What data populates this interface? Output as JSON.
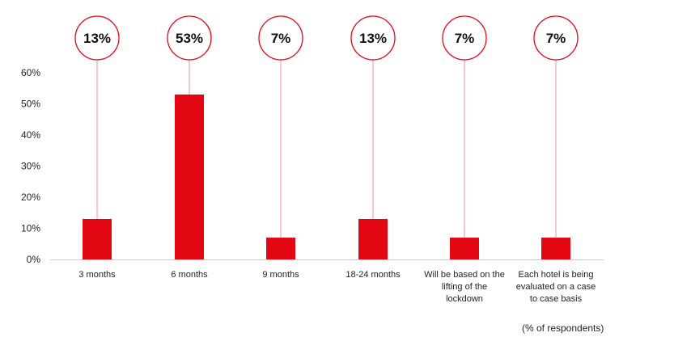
{
  "chart_data": {
    "type": "bar",
    "categories": [
      [
        "3 months"
      ],
      [
        "6 months"
      ],
      [
        "9 months"
      ],
      [
        "18-24 months"
      ],
      [
        "Will be based on the",
        "lifting of the",
        "lockdown"
      ],
      [
        "Each hotel is being",
        "evaluated on a case",
        "to case basis"
      ]
    ],
    "values": [
      13,
      53,
      7,
      13,
      7,
      7
    ],
    "labels": [
      "13%",
      "53%",
      "7%",
      "13%",
      "7%",
      "7%"
    ],
    "yticks": [
      "0%",
      "10%",
      "20%",
      "30%",
      "40%",
      "50%",
      "60%"
    ],
    "ylim": [
      0,
      60
    ],
    "grid": false,
    "colors": {
      "bar": "#e30613",
      "bubble_border": "#e30613",
      "connector": "#e89aa0",
      "axis": "#cccccc"
    }
  },
  "footnote": "(% of respondents)"
}
